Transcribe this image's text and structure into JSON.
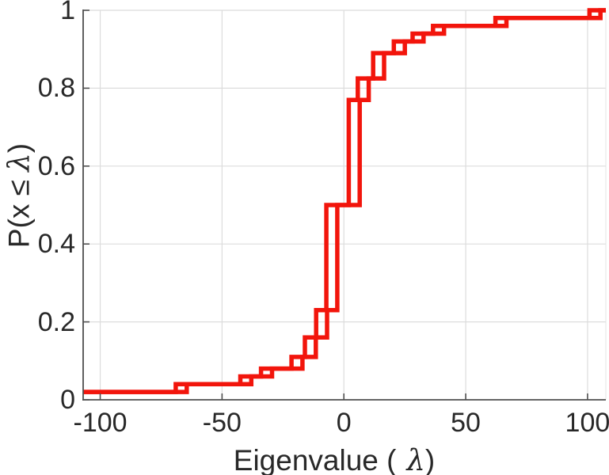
{
  "chart_data": {
    "type": "line",
    "subtype": "ecdf_staircase",
    "title": "",
    "xlabel": {
      "prefix": "Eigenvalue (",
      "symbol": "λ",
      "suffix": ")"
    },
    "ylabel": {
      "prefix": "P(x ≤ ",
      "symbol": "λ",
      "suffix": ")"
    },
    "xlim": [
      -107,
      107.5
    ],
    "ylim": [
      0,
      1
    ],
    "x_ticks": [
      {
        "value": -100,
        "label": "-100"
      },
      {
        "value": -50,
        "label": "-50"
      },
      {
        "value": 0,
        "label": "0"
      },
      {
        "value": 50,
        "label": "50"
      },
      {
        "value": 100,
        "label": "100"
      }
    ],
    "y_ticks": [
      {
        "value": 0,
        "label": "0"
      },
      {
        "value": 0.2,
        "label": "0.2"
      },
      {
        "value": 0.4,
        "label": "0.4"
      },
      {
        "value": 0.6,
        "label": "0.6"
      },
      {
        "value": 0.8,
        "label": "0.8"
      },
      {
        "value": 1,
        "label": "1"
      }
    ],
    "grid": true,
    "legend": null,
    "series": [
      {
        "name": "ecdf-curve-primary",
        "start_level": 0.02,
        "step_x": [
          -69,
          -42.5,
          -34,
          -21.5,
          -16,
          -11.4,
          -7.2,
          2.0,
          5.7,
          12.0,
          20.5,
          28.2,
          36.6,
          62.2,
          100.8
        ],
        "step_p": [
          0.04,
          0.06,
          0.08,
          0.11,
          0.16,
          0.23,
          0.5,
          0.77,
          0.825,
          0.89,
          0.92,
          0.94,
          0.96,
          0.98,
          1.0
        ]
      },
      {
        "name": "ecdf-curve-secondary",
        "start_level": 0.02,
        "x_offset_from_primary": 4.5,
        "step_x": [
          -64.5,
          -38,
          -29.5,
          -17,
          -11.5,
          -6.9,
          -2.7,
          6.5,
          10.2,
          16.5,
          25.0,
          32.7,
          41.1,
          66.7,
          105.3
        ],
        "step_p": [
          0.04,
          0.06,
          0.08,
          0.11,
          0.16,
          0.23,
          0.5,
          0.77,
          0.825,
          0.89,
          0.92,
          0.94,
          0.96,
          0.98,
          1.0
        ]
      }
    ],
    "colors": {
      "line": "#f2150c",
      "axis": "#4f4f4f",
      "grid": "#dcdcdc",
      "frame_light": "#e4e4e4",
      "text": "#282828"
    },
    "line_width": 5.5
  }
}
